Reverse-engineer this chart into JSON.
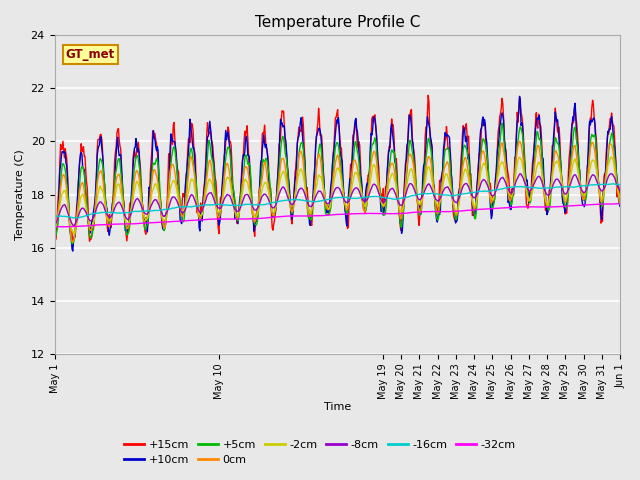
{
  "title": "Temperature Profile C",
  "xlabel": "Time",
  "ylabel": "Temperature (C)",
  "ylim": [
    12,
    24
  ],
  "yticks": [
    12,
    14,
    16,
    18,
    20,
    22,
    24
  ],
  "series": [
    {
      "label": "+15cm",
      "color": "#FF0000",
      "lw": 1.0
    },
    {
      "label": "+10cm",
      "color": "#0000CC",
      "lw": 1.0
    },
    {
      "label": "+5cm",
      "color": "#00BB00",
      "lw": 1.0
    },
    {
      "label": "0cm",
      "color": "#FF8800",
      "lw": 1.0
    },
    {
      "label": "-2cm",
      "color": "#CCCC00",
      "lw": 1.0
    },
    {
      "label": "-8cm",
      "color": "#9900CC",
      "lw": 1.0
    },
    {
      "label": "-16cm",
      "color": "#00CCCC",
      "lw": 1.0
    },
    {
      "label": "-32cm",
      "color": "#FF00FF",
      "lw": 1.0
    }
  ],
  "legend_label": "GT_met",
  "legend_box_color": "#FFFF99",
  "legend_box_edge": "#CC8800",
  "bg_color": "#E8E8E8",
  "n_points": 744,
  "seed": 42,
  "tick_labels": [
    "May 1",
    "May 10",
    "May 19",
    "May 20",
    "May 21",
    "May 22",
    "May 23",
    "May 24",
    "May 25",
    "May 26",
    "May 27",
    "May 28",
    "May 29",
    "May 30",
    "May 31",
    "Jun 1"
  ],
  "tick_positions": [
    0,
    9,
    18,
    19,
    20,
    21,
    22,
    23,
    24,
    25,
    26,
    27,
    28,
    29,
    30,
    31
  ]
}
